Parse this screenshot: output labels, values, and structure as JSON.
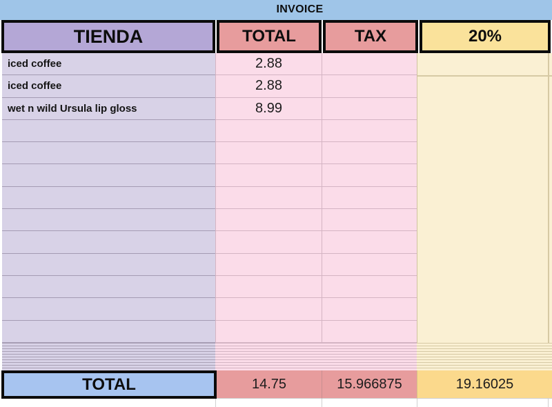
{
  "title": "INVOICE",
  "columns": {
    "tienda": "TIENDA",
    "total": "TOTAL",
    "tax": "TAX",
    "pct": "20%"
  },
  "rows": [
    {
      "name": "iced coffee",
      "total": "2.88",
      "tax": ""
    },
    {
      "name": "iced coffee",
      "total": "2.88",
      "tax": ""
    },
    {
      "name": "wet n wild Ursula lip gloss",
      "total": "8.99",
      "tax": ""
    },
    {
      "name": "",
      "total": "",
      "tax": ""
    },
    {
      "name": "",
      "total": "",
      "tax": ""
    },
    {
      "name": "",
      "total": "",
      "tax": ""
    },
    {
      "name": "",
      "total": "",
      "tax": ""
    },
    {
      "name": "",
      "total": "",
      "tax": ""
    },
    {
      "name": "",
      "total": "",
      "tax": ""
    },
    {
      "name": "",
      "total": "",
      "tax": ""
    },
    {
      "name": "",
      "total": "",
      "tax": ""
    },
    {
      "name": "",
      "total": "",
      "tax": ""
    },
    {
      "name": "",
      "total": "",
      "tax": ""
    }
  ],
  "summary": {
    "label": "TOTAL",
    "total": "14.75",
    "tax": "15.966875",
    "pct": "19.16025"
  },
  "colors": {
    "banner_blue": "#9FC5E8",
    "header_lavender": "#B4A7D6",
    "data_lavender": "#D8D2E7",
    "salmon": "#E79C9D",
    "data_pink": "#FBDCE9",
    "header_yellow": "#FAE29B",
    "data_yellow": "#FAF0D3",
    "total_yellow": "#FBD98C",
    "total_blue": "#A7C4F0",
    "border_black": "#0b0b0b"
  }
}
